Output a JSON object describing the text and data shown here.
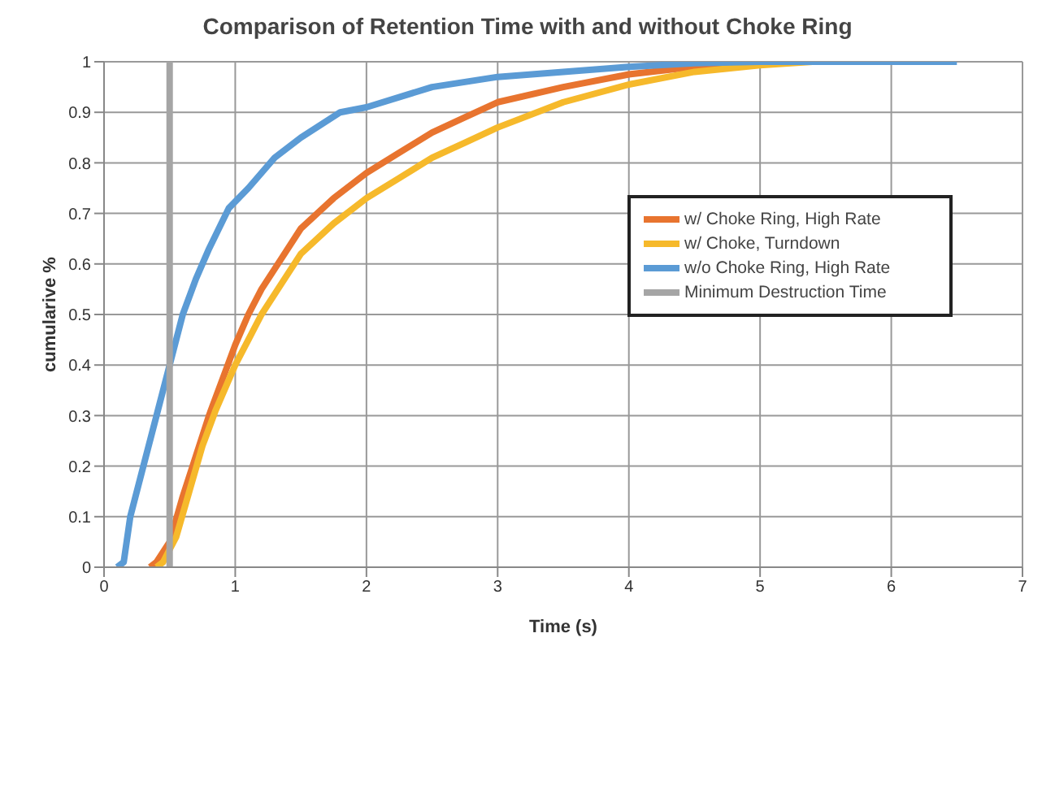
{
  "chart_data": {
    "type": "line",
    "title": "Comparison of Retention Time with and without Choke Ring",
    "xlabel": "Time (s)",
    "ylabel": "cumularive %",
    "xlim": [
      0,
      7
    ],
    "xticks": [
      0,
      1,
      2,
      3,
      4,
      5,
      6,
      7
    ],
    "ylim": [
      0,
      1
    ],
    "yticks": [
      0,
      0.1,
      0.2,
      0.3,
      0.4,
      0.5,
      0.6,
      0.7,
      0.8,
      0.9,
      1
    ],
    "grid": true,
    "legend": "top right",
    "marker": "none",
    "line_style": "solid",
    "series": [
      {
        "name": "w/ Choke Ring, High Rate",
        "color": "#e8742f",
        "x": [
          0.35,
          0.4,
          0.5,
          0.6,
          0.7,
          0.8,
          0.9,
          1.0,
          1.1,
          1.2,
          1.35,
          1.5,
          1.75,
          2.0,
          2.25,
          2.5,
          2.75,
          3.0,
          3.5,
          4.0,
          4.5,
          5.0,
          5.2
        ],
        "values": [
          0,
          0.01,
          0.05,
          0.14,
          0.22,
          0.3,
          0.37,
          0.44,
          0.5,
          0.55,
          0.61,
          0.67,
          0.73,
          0.78,
          0.82,
          0.86,
          0.89,
          0.92,
          0.95,
          0.975,
          0.99,
          0.997,
          1
        ]
      },
      {
        "name": "w/ Choke, Turndown",
        "color": "#f6b92b",
        "x": [
          0.4,
          0.45,
          0.55,
          0.65,
          0.75,
          0.85,
          1.0,
          1.1,
          1.2,
          1.35,
          1.5,
          1.75,
          2.0,
          2.25,
          2.5,
          2.75,
          3.0,
          3.5,
          4.0,
          4.5,
          5.0,
          5.4
        ],
        "values": [
          0,
          0.01,
          0.06,
          0.15,
          0.24,
          0.31,
          0.4,
          0.45,
          0.5,
          0.56,
          0.62,
          0.68,
          0.73,
          0.77,
          0.81,
          0.84,
          0.87,
          0.92,
          0.955,
          0.98,
          0.993,
          1
        ]
      },
      {
        "name": "w/o Choke Ring, High Rate",
        "color": "#5b9bd5",
        "x": [
          0.1,
          0.15,
          0.2,
          0.3,
          0.4,
          0.5,
          0.6,
          0.7,
          0.8,
          0.95,
          1.1,
          1.3,
          1.5,
          1.8,
          2.0,
          2.5,
          3.0,
          3.5,
          4.0,
          4.5,
          5.0,
          6.5
        ],
        "values": [
          0,
          0.01,
          0.1,
          0.2,
          0.3,
          0.4,
          0.5,
          0.57,
          0.63,
          0.71,
          0.75,
          0.81,
          0.85,
          0.9,
          0.91,
          0.95,
          0.97,
          0.98,
          0.99,
          0.997,
          1,
          1
        ]
      },
      {
        "name": "Minimum Destruction Time",
        "color": "#a5a5a5",
        "x": [
          0.5,
          0.5
        ],
        "values": [
          0,
          1
        ]
      }
    ]
  }
}
